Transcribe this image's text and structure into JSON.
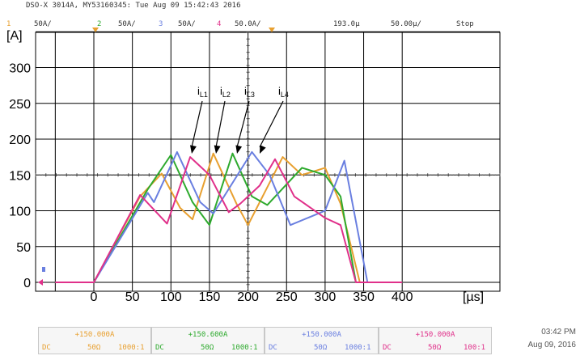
{
  "header": {
    "scope_info": "DSO-X 3014A, MY53160345: Tue Aug 09 15:42:43 2016"
  },
  "channel_bar": {
    "channels": [
      {
        "num": "1",
        "scale": "50A/",
        "color": "#e8a030"
      },
      {
        "num": "2",
        "scale": "50A/",
        "color": "#2eaa2e"
      },
      {
        "num": "3",
        "scale": "50A/",
        "color": "#6a7fe0"
      },
      {
        "num": "4",
        "scale": "50.0A/",
        "color": "#e0308a"
      }
    ],
    "time_offset": "193.0µ",
    "time_scale": "50.00µ/",
    "run_state": "Stop"
  },
  "annotations": {
    "labels": [
      {
        "main": "i",
        "sub": "L1"
      },
      {
        "main": "i",
        "sub": "L2"
      },
      {
        "main": "i",
        "sub": "L3"
      },
      {
        "main": "i",
        "sub": "L4"
      }
    ]
  },
  "chart_data": {
    "type": "line",
    "ylabel": "[A]",
    "xlabel": "[µs]",
    "xlim": [
      -50,
      400
    ],
    "ylim": [
      0,
      350
    ],
    "x_ticks": [
      "0",
      "50",
      "100",
      "150",
      "200",
      "250",
      "300",
      "350",
      "400"
    ],
    "y_ticks": [
      "0",
      "50",
      "100",
      "150",
      "200",
      "250",
      "300"
    ],
    "grid": true,
    "series": [
      {
        "name": "iL1",
        "color": "#e8a030",
        "points": [
          [
            -50,
            0
          ],
          [
            0,
            0
          ],
          [
            60,
            120
          ],
          [
            88,
            152
          ],
          [
            112,
            104
          ],
          [
            128,
            88
          ],
          [
            155,
            180
          ],
          [
            185,
            110
          ],
          [
            200,
            80
          ],
          [
            245,
            175
          ],
          [
            270,
            150
          ],
          [
            300,
            160
          ],
          [
            320,
            110
          ],
          [
            345,
            0
          ],
          [
            400,
            0
          ]
        ]
      },
      {
        "name": "iL2",
        "color": "#2eaa2e",
        "points": [
          [
            -50,
            0
          ],
          [
            0,
            0
          ],
          [
            70,
            130
          ],
          [
            100,
            178
          ],
          [
            128,
            112
          ],
          [
            150,
            80
          ],
          [
            180,
            180
          ],
          [
            205,
            120
          ],
          [
            225,
            108
          ],
          [
            270,
            160
          ],
          [
            300,
            150
          ],
          [
            320,
            120
          ],
          [
            340,
            0
          ],
          [
            400,
            0
          ]
        ]
      },
      {
        "name": "iL3",
        "color": "#6a7fe0",
        "points": [
          [
            -50,
            0
          ],
          [
            0,
            0
          ],
          [
            70,
            125
          ],
          [
            78,
            112
          ],
          [
            108,
            182
          ],
          [
            138,
            112
          ],
          [
            155,
            96
          ],
          [
            205,
            182
          ],
          [
            228,
            150
          ],
          [
            255,
            80
          ],
          [
            300,
            100
          ],
          [
            325,
            170
          ],
          [
            355,
            0
          ],
          [
            400,
            0
          ]
        ]
      },
      {
        "name": "iL4",
        "color": "#e0308a",
        "points": [
          [
            -50,
            0
          ],
          [
            0,
            0
          ],
          [
            60,
            122
          ],
          [
            95,
            82
          ],
          [
            125,
            175
          ],
          [
            150,
            150
          ],
          [
            175,
            98
          ],
          [
            190,
            110
          ],
          [
            215,
            135
          ],
          [
            235,
            172
          ],
          [
            260,
            120
          ],
          [
            300,
            90
          ],
          [
            320,
            80
          ],
          [
            340,
            0
          ],
          [
            400,
            0
          ]
        ]
      }
    ]
  },
  "bottom": {
    "boxes": [
      {
        "offset": "+150.000A",
        "coupling": "DC",
        "impedance": "50Ω",
        "probe": "1000:1",
        "color": "#e8a030"
      },
      {
        "offset": "+150.600A",
        "coupling": "DC",
        "impedance": "50Ω",
        "probe": "1000:1",
        "color": "#2eaa2e"
      },
      {
        "offset": "+150.000A",
        "coupling": "DC",
        "impedance": "50Ω",
        "probe": "1000:1",
        "color": "#6a7fe0"
      },
      {
        "offset": "+150.000A",
        "coupling": "DC",
        "impedance": "50Ω",
        "probe": "100:1",
        "color": "#e0308a"
      }
    ],
    "time": "03:42 PM",
    "date": "Aug 09, 2016"
  }
}
